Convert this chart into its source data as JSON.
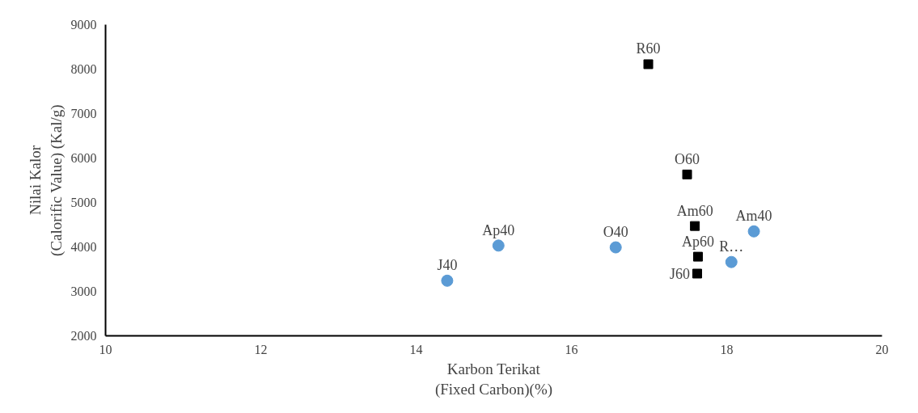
{
  "chart_data": {
    "type": "scatter",
    "xlabel": "Karbon Terikat\n(Fixed Carbon)(%)",
    "ylabel": "Nilai Kalor\n(Calorific Value) (Kal/g)",
    "xlim": [
      10,
      20
    ],
    "xticks": [
      10,
      12,
      14,
      16,
      18,
      20
    ],
    "ylim": [
      2000,
      9000
    ],
    "yticks": [
      2000,
      3000,
      4000,
      5000,
      6000,
      7000,
      8000,
      9000
    ],
    "grid": false,
    "series": [
      {
        "color": "#5b9bd5",
        "marker": "circle",
        "x": [
          14.4,
          15.06,
          16.57,
          18.06,
          18.35
        ],
        "values": [
          3240,
          4030,
          3990,
          3660,
          4350
        ]
      },
      {
        "color": "#000000",
        "marker": "square",
        "x": [
          16.99,
          17.49,
          17.59,
          17.63,
          17.62
        ],
        "values": [
          8110,
          5630,
          4470,
          3780,
          3400
        ]
      }
    ],
    "annotations": [
      {
        "text": "J40",
        "x": 14.4,
        "y": 3240
      },
      {
        "text": "Ap40",
        "x": 15.06,
        "y": 4030
      },
      {
        "text": "O40",
        "x": 16.57,
        "y": 3990
      },
      {
        "text": "R…",
        "x": 18.06,
        "y": 3660
      },
      {
        "text": "Am40",
        "x": 18.35,
        "y": 4350
      },
      {
        "text": "R60",
        "x": 16.99,
        "y": 8110
      },
      {
        "text": "O60",
        "x": 17.49,
        "y": 5630
      },
      {
        "text": "Am60",
        "x": 17.59,
        "y": 4470
      },
      {
        "text": "Ap60",
        "x": 17.63,
        "y": 3780
      },
      {
        "text": "J60",
        "x": 17.62,
        "y": 3400
      }
    ]
  }
}
